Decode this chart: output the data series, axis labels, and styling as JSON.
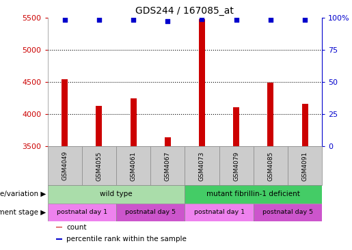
{
  "title": "GDS244 / 167085_at",
  "samples": [
    "GSM4049",
    "GSM4055",
    "GSM4061",
    "GSM4067",
    "GSM4073",
    "GSM4079",
    "GSM4085",
    "GSM4091"
  ],
  "counts": [
    4540,
    4130,
    4250,
    3640,
    5480,
    4110,
    4490,
    4160
  ],
  "percentile_ranks": [
    98,
    98,
    98,
    97,
    99,
    98,
    98,
    98
  ],
  "ylim_left": [
    3500,
    5500
  ],
  "ylim_right": [
    0,
    100
  ],
  "yticks_left": [
    3500,
    4000,
    4500,
    5000,
    5500
  ],
  "yticks_right": [
    0,
    25,
    50,
    75,
    100
  ],
  "right_tick_labels": [
    "0",
    "25",
    "50",
    "75",
    "100%"
  ],
  "bar_color": "#cc0000",
  "dot_color": "#0000cc",
  "bar_width": 0.18,
  "grid_color": "#000000",
  "grid_ticks": [
    4000,
    4500,
    5000
  ],
  "genotype_groups": [
    {
      "label": "wild type",
      "start": 0,
      "end": 4,
      "color": "#aaddaa"
    },
    {
      "label": "mutant fibrillin-1 deficient",
      "start": 4,
      "end": 8,
      "color": "#44cc66"
    }
  ],
  "dev_stage_groups": [
    {
      "label": "postnatal day 1",
      "start": 0,
      "end": 2,
      "color": "#ee82ee"
    },
    {
      "label": "postnatal day 5",
      "start": 2,
      "end": 4,
      "color": "#cc55cc"
    },
    {
      "label": "postnatal day 1",
      "start": 4,
      "end": 6,
      "color": "#ee82ee"
    },
    {
      "label": "postnatal day 5",
      "start": 6,
      "end": 8,
      "color": "#cc55cc"
    }
  ],
  "legend_items": [
    {
      "label": "count",
      "color": "#cc0000"
    },
    {
      "label": "percentile rank within the sample",
      "color": "#0000cc"
    }
  ],
  "tick_color_left": "#cc0000",
  "tick_color_right": "#0000cc",
  "background_color": "#ffffff",
  "plot_bg_color": "#ffffff",
  "xticklabel_bg": "#cccccc"
}
